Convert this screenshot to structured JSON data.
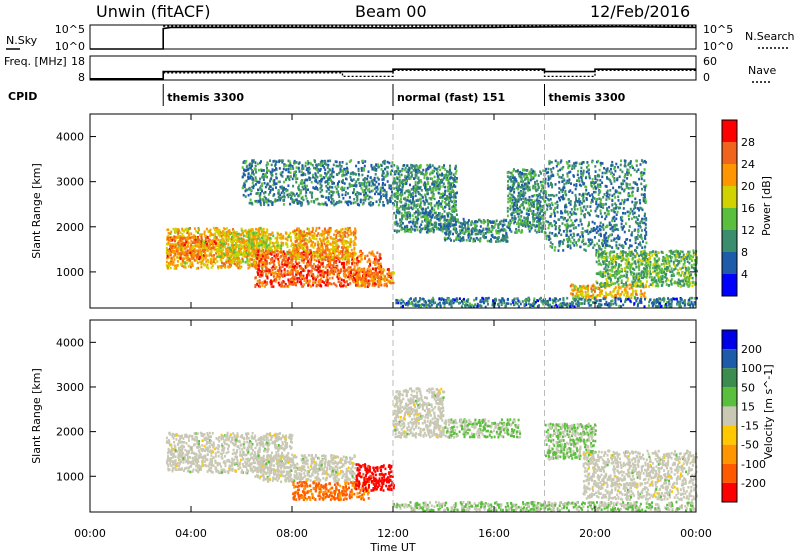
{
  "header": {
    "station": "Unwin (fitACF)",
    "beam": "Beam 00",
    "date": "12/Feb/2016"
  },
  "colors": {
    "power_scale": [
      "#0000ff",
      "#1e5ba8",
      "#3c8c6e",
      "#5abf3c",
      "#d2d200",
      "#ff9600",
      "#f0641e",
      "#ff0000"
    ],
    "velocity_scale": [
      "#0000e6",
      "#1e5ba8",
      "#3c8c50",
      "#5abf3c",
      "#c8c8b4",
      "#ffc800",
      "#ff9600",
      "#ff5a00",
      "#ff0000"
    ]
  },
  "chart_data": [
    {
      "type": "line",
      "name": "nsky-nsearch-panel",
      "left_label": "N.Sky",
      "right_label": "N.Search",
      "left_ticks": [
        "10^5",
        "10^0"
      ],
      "right_ticks": [
        "10^5",
        "10^0"
      ],
      "xlim": [
        0,
        24
      ],
      "series": [
        {
          "style": "solid",
          "x": [
            0,
            2.9,
            2.9,
            3.2,
            8,
            12,
            16,
            18,
            21,
            24
          ],
          "y": [
            0,
            0,
            0.85,
            0.9,
            0.9,
            0.88,
            0.9,
            0.92,
            0.93,
            0.9
          ]
        },
        {
          "style": "dotted",
          "x": [
            2.9,
            24
          ],
          "y": [
            0.95,
            0.95
          ]
        }
      ]
    },
    {
      "type": "line",
      "name": "freq-nave-panel",
      "left_label": "Freq. [MHz]",
      "right_label": "Nave",
      "left_ticks": [
        "18",
        "8"
      ],
      "right_ticks": [
        "60",
        "0"
      ],
      "xlim": [
        0,
        24
      ],
      "series": [
        {
          "style": "solid",
          "x": [
            0,
            2.9,
            2.9,
            10,
            10,
            12,
            12,
            18,
            18,
            20,
            20,
            24
          ],
          "y": [
            0.05,
            0.05,
            0.35,
            0.35,
            0.35,
            0.35,
            0.45,
            0.45,
            0.35,
            0.35,
            0.45,
            0.45
          ]
        },
        {
          "style": "dotted",
          "x": [
            2.9,
            10,
            10,
            12,
            12,
            18,
            18,
            20,
            20,
            24
          ],
          "y": [
            0.3,
            0.3,
            0.15,
            0.15,
            0.4,
            0.4,
            0.15,
            0.15,
            0.4,
            0.4
          ]
        }
      ]
    },
    {
      "type": "table",
      "name": "cpid-panel",
      "label": "CPID",
      "segments": [
        {
          "start": 2.9,
          "label": "themis 3300"
        },
        {
          "start": 12,
          "label": "normal (fast) 151"
        },
        {
          "start": 18,
          "label": "themis 3300"
        }
      ]
    },
    {
      "type": "heatmap",
      "name": "power-panel",
      "ylabel": "Slant Range [km]",
      "ylim": [
        200,
        4500
      ],
      "yticks": [
        1000,
        2000,
        3000,
        4000
      ],
      "xlim": [
        0,
        24
      ],
      "colorbar_label": "Power [dB]",
      "colorbar_ticks": [
        4,
        8,
        12,
        16,
        20,
        24,
        28
      ],
      "value_range": [
        0,
        32
      ],
      "regions": [
        {
          "t": [
            3,
            7
          ],
          "r": [
            1100,
            2000
          ],
          "v": 20
        },
        {
          "t": [
            3,
            5
          ],
          "r": [
            1300,
            1800
          ],
          "v": 24
        },
        {
          "t": [
            5,
            8.5
          ],
          "r": [
            1400,
            1900
          ],
          "v": 18
        },
        {
          "t": [
            6.5,
            11.5
          ],
          "r": [
            700,
            1500
          ],
          "v": 26
        },
        {
          "t": [
            8,
            10.5
          ],
          "r": [
            1300,
            2000
          ],
          "v": 22
        },
        {
          "t": [
            10.5,
            12
          ],
          "r": [
            700,
            1100
          ],
          "v": 24
        },
        {
          "t": [
            6,
            12
          ],
          "r": [
            2500,
            3500
          ],
          "v": 9
        },
        {
          "t": [
            12,
            14.5
          ],
          "r": [
            1900,
            3400
          ],
          "v": 10
        },
        {
          "t": [
            14,
            16.5
          ],
          "r": [
            1700,
            2200
          ],
          "v": 9
        },
        {
          "t": [
            16.5,
            18
          ],
          "r": [
            1900,
            3300
          ],
          "v": 10
        },
        {
          "t": [
            18,
            22
          ],
          "r": [
            1500,
            3500
          ],
          "v": 9
        },
        {
          "t": [
            19,
            22
          ],
          "r": [
            450,
            750
          ],
          "v": 20
        },
        {
          "t": [
            20,
            24
          ],
          "r": [
            700,
            1500
          ],
          "v": 13
        },
        {
          "t": [
            12,
            24
          ],
          "r": [
            250,
            450
          ],
          "v": 8
        }
      ]
    },
    {
      "type": "heatmap",
      "name": "velocity-panel",
      "ylabel": "Slant Range [km]",
      "xlabel": "Time UT",
      "ylim": [
        200,
        4500
      ],
      "yticks": [
        1000,
        2000,
        3000,
        4000
      ],
      "xlim": [
        0,
        24
      ],
      "xticks": [
        0,
        4,
        8,
        12,
        16,
        20,
        24
      ],
      "xtick_labels": [
        "00:00",
        "04:00",
        "08:00",
        "12:00",
        "16:00",
        "20:00",
        "00:00"
      ],
      "colorbar_label": "Velocity [m s^-1]",
      "colorbar_ticks": [
        200,
        100,
        50,
        15,
        -15,
        -50,
        -100,
        -200
      ],
      "value_range": [
        -250,
        250
      ],
      "regions": [
        {
          "t": [
            3,
            8
          ],
          "r": [
            1100,
            2000
          ],
          "v": 0
        },
        {
          "t": [
            6.5,
            10.5
          ],
          "r": [
            900,
            1500
          ],
          "v": 0
        },
        {
          "t": [
            8,
            11
          ],
          "r": [
            500,
            900
          ],
          "v": -150
        },
        {
          "t": [
            10.5,
            12
          ],
          "r": [
            700,
            1300
          ],
          "v": -220
        },
        {
          "t": [
            12,
            14
          ],
          "r": [
            1900,
            3000
          ],
          "v": 0
        },
        {
          "t": [
            14,
            17
          ],
          "r": [
            1900,
            2300
          ],
          "v": 30
        },
        {
          "t": [
            18,
            20
          ],
          "r": [
            1400,
            2200
          ],
          "v": 30
        },
        {
          "t": [
            19.5,
            24
          ],
          "r": [
            500,
            1600
          ],
          "v": 0
        },
        {
          "t": [
            12,
            24
          ],
          "r": [
            250,
            450
          ],
          "v": 30
        }
      ]
    }
  ]
}
